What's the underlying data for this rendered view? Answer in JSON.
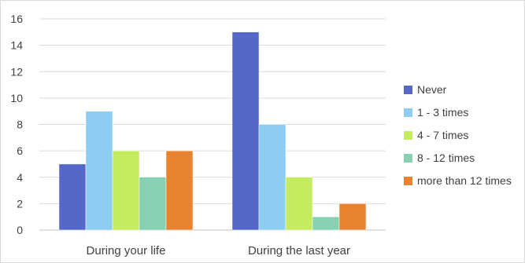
{
  "chart_data": {
    "type": "bar",
    "categories": [
      "During your life",
      "During the last year"
    ],
    "series": [
      {
        "name": "Never",
        "color": "#5567C9",
        "values": [
          5,
          15
        ]
      },
      {
        "name": "1 - 3 times",
        "color": "#8DCDF2",
        "values": [
          9,
          8
        ]
      },
      {
        "name": "4 - 7 times",
        "color": "#C5EB5F",
        "values": [
          6,
          4
        ]
      },
      {
        "name": "8 - 12 times",
        "color": "#86D1B2",
        "values": [
          4,
          1
        ]
      },
      {
        "name": "more than 12 times",
        "color": "#E8822E",
        "values": [
          6,
          2
        ]
      }
    ],
    "yticks": [
      0,
      2,
      4,
      6,
      8,
      10,
      12,
      14,
      16
    ],
    "ylim": [
      0,
      16
    ],
    "grid": true,
    "legend": "right",
    "title": "",
    "xlabel": "",
    "ylabel": ""
  }
}
